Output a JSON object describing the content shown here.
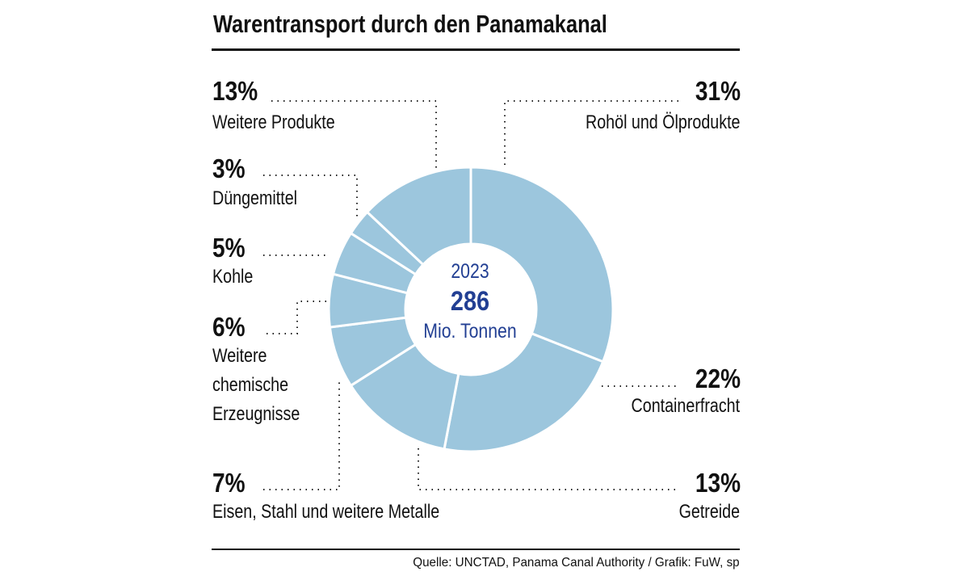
{
  "title": "Warentransport durch den Panamakanal",
  "source": "Quelle: UNCTAD, Panama Canal Authority / Grafik: FuW, sp",
  "center": {
    "year": "2023",
    "total": "286",
    "unit": "Mio. Tonnen"
  },
  "colors": {
    "slice": "#9cc6dd",
    "center_text": "#223f93",
    "text": "#111111"
  },
  "chart_data": {
    "type": "pie",
    "variant": "donut",
    "title": "Warentransport durch den Panamakanal",
    "categories": [
      "Rohöl und Ölprodukte",
      "Containerfracht",
      "Getreide",
      "Eisen, Stahl und weitere Metalle",
      "Weitere chemische Erzeugnisse",
      "Kohle",
      "Düngemittel",
      "Weitere Produkte"
    ],
    "values": [
      31,
      22,
      13,
      7,
      6,
      5,
      3,
      13
    ],
    "labels": [
      "31%",
      "22%",
      "13%",
      "7%",
      "6%",
      "5%",
      "3%",
      "13%"
    ],
    "total": 286,
    "unit": "Mio. Tonnen",
    "year": "2023"
  }
}
